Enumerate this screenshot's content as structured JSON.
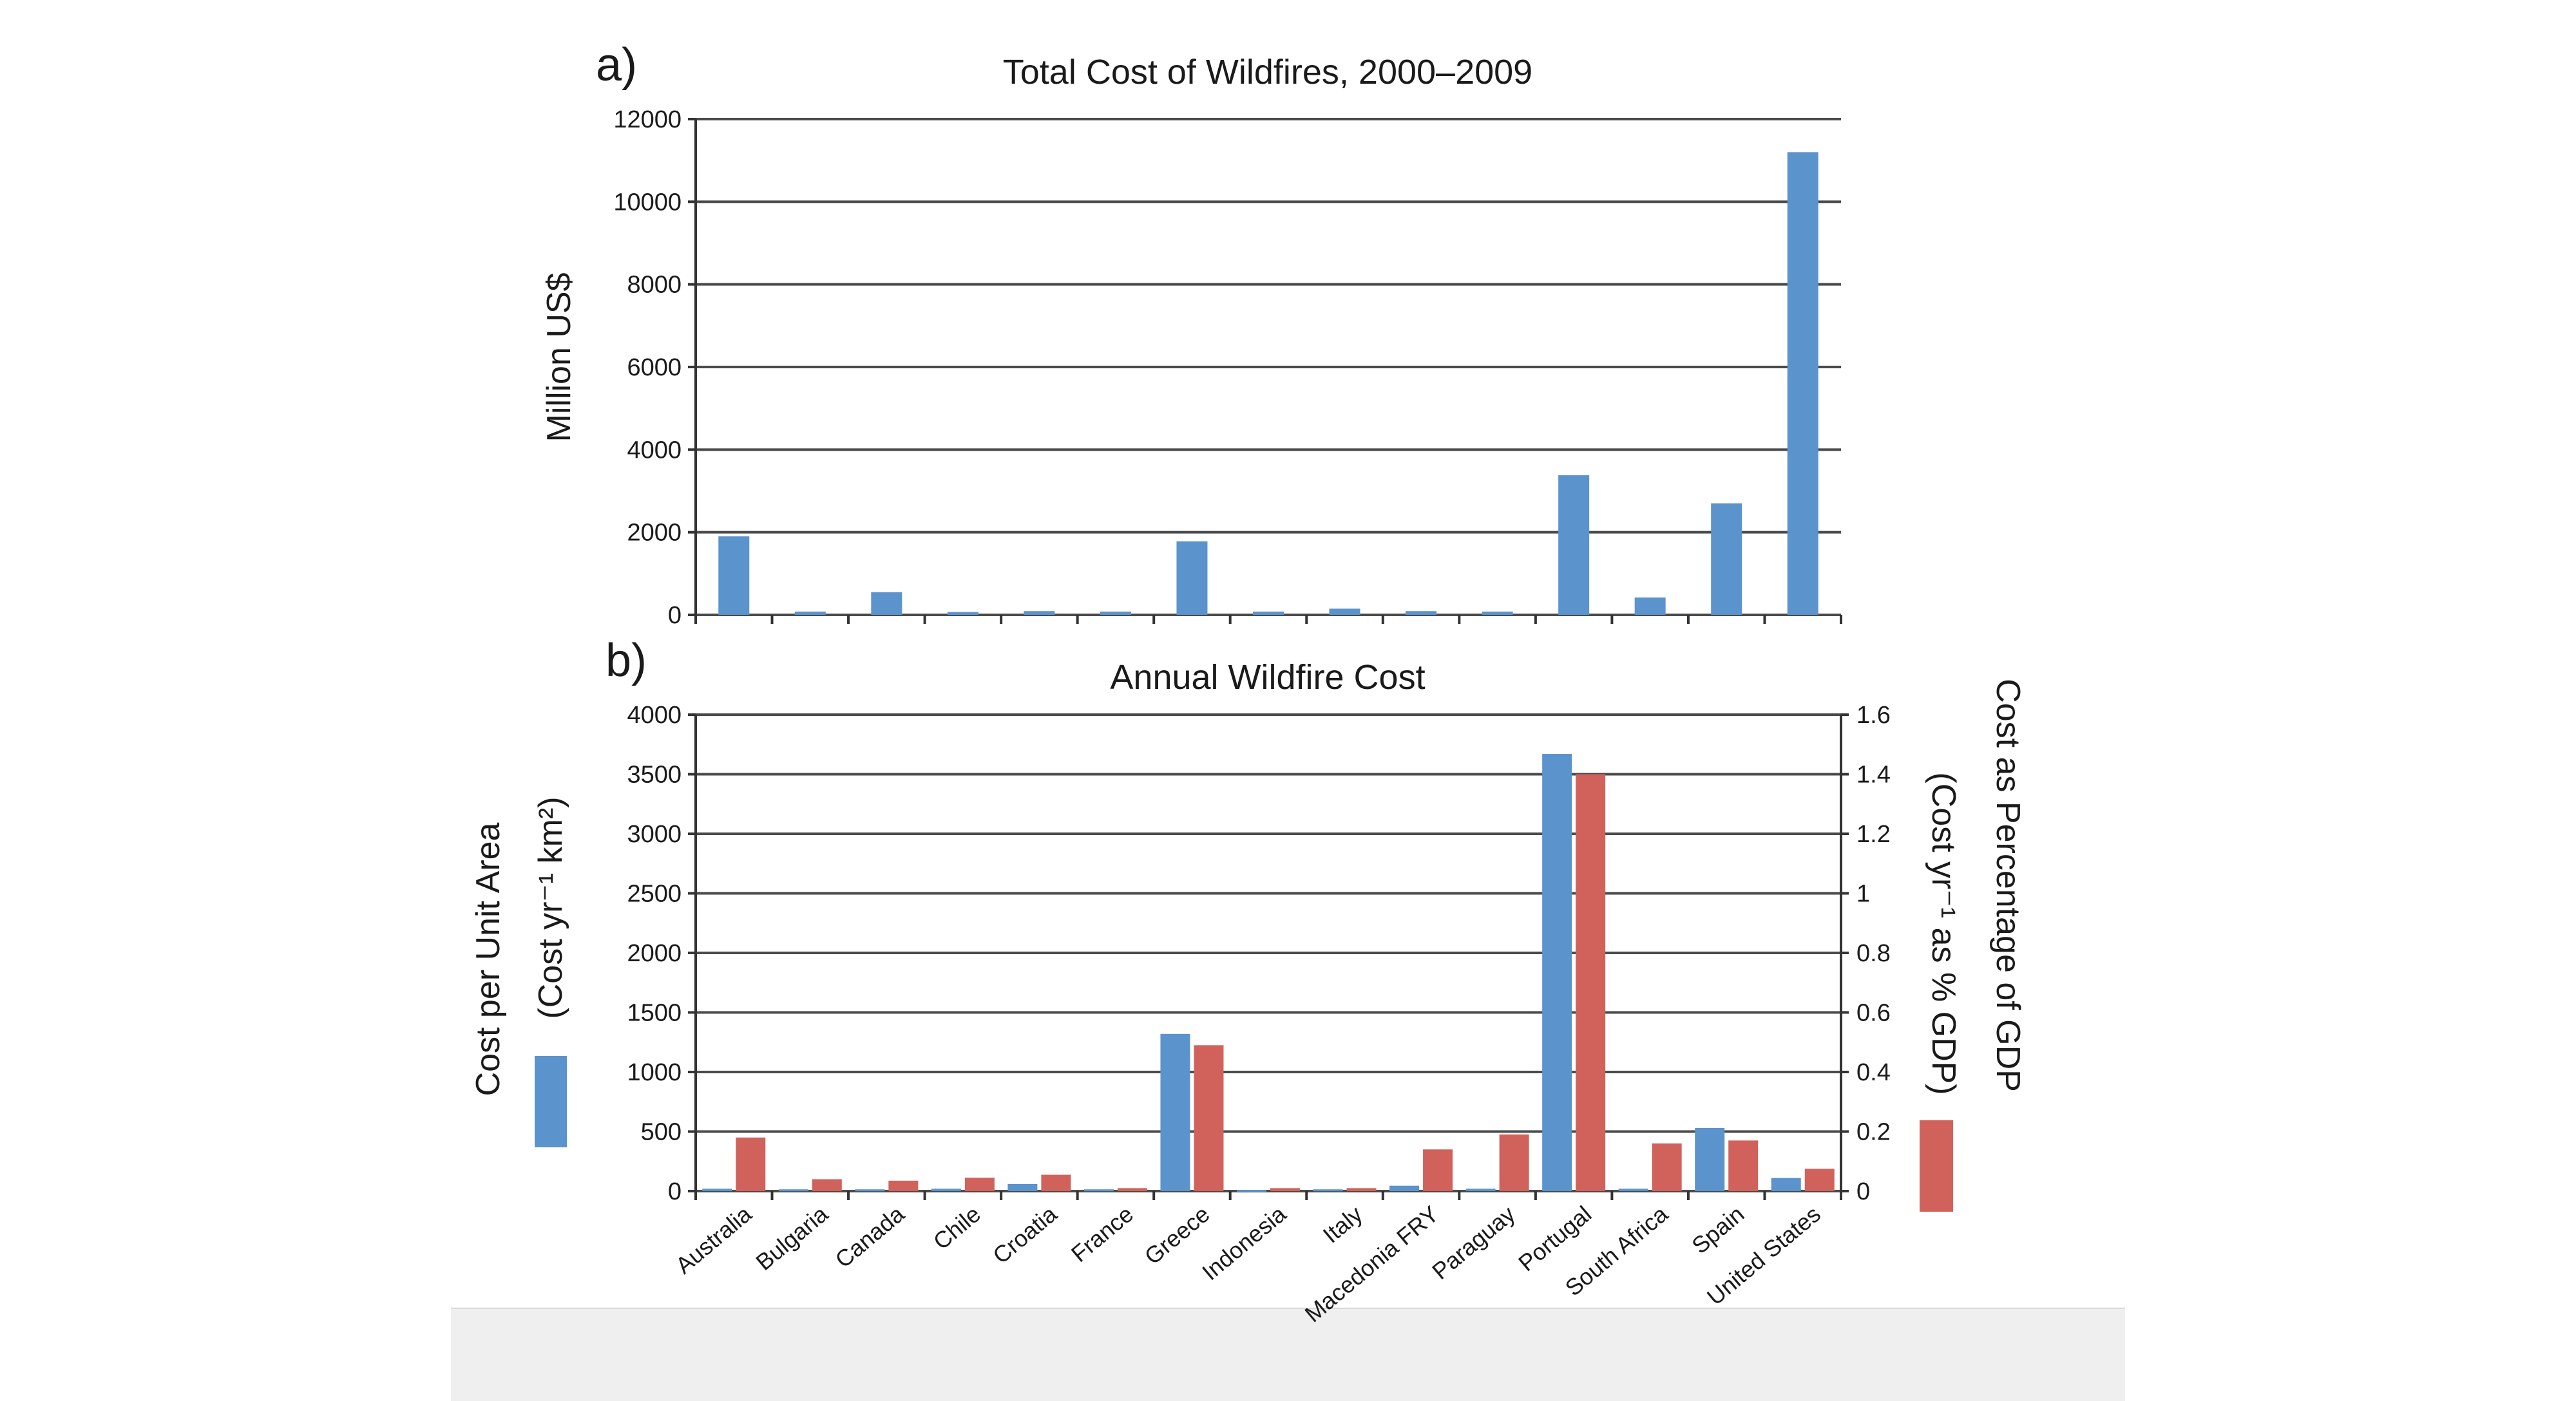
{
  "chart_data": [
    {
      "type": "bar",
      "panel_label": "a)",
      "title": "Total Cost of Wildfires, 2000–2009",
      "ylabel": "Million US$",
      "ylim": [
        0,
        12000
      ],
      "yticks": [
        "0",
        "2000",
        "4000",
        "6000",
        "8000",
        "10000",
        "12000"
      ],
      "categories": [
        "Australia",
        "Bulgaria",
        "Canada",
        "Chile",
        "Croatia",
        "France",
        "Greece",
        "Indonesia",
        "Italy",
        "Macedonia FRY",
        "Paraguay",
        "Portugal",
        "South Africa",
        "Spain",
        "United States"
      ],
      "series": [
        {
          "color": "#5b93cd",
          "values": [
            1900,
            80,
            550,
            70,
            90,
            80,
            1780,
            80,
            150,
            90,
            80,
            3380,
            420,
            2700,
            11200
          ]
        }
      ],
      "grid": true
    },
    {
      "type": "bar",
      "panel_label": "b)",
      "title": "Annual Wildfire Cost",
      "ylabel_left": [
        "Cost per Unit Area",
        "(Cost yr⁻¹ km²)"
      ],
      "ylabel_right": [
        "Cost as Percentage of GDP",
        "(Cost yr⁻¹ as % GDP)"
      ],
      "ylim_left": [
        0,
        4000
      ],
      "ylim_right": [
        0,
        1.6
      ],
      "yticks_left": [
        "0",
        "500",
        "1000",
        "1500",
        "2000",
        "2500",
        "3000",
        "3500",
        "4000"
      ],
      "yticks_right": [
        "0",
        "0.2",
        "0.4",
        "0.6",
        "0.8",
        "1",
        "1.2",
        "1.4",
        "1.6"
      ],
      "categories": [
        "Australia",
        "Bulgaria",
        "Canada",
        "Chile",
        "Croatia",
        "France",
        "Greece",
        "Indonesia",
        "Italy",
        "Macedonia FRY",
        "Paraguay",
        "Portugal",
        "South Africa",
        "Spain",
        "United States"
      ],
      "series": [
        {
          "axis": "left",
          "color": "#5b93cd",
          "values": [
            20,
            15,
            15,
            20,
            60,
            15,
            1320,
            10,
            15,
            45,
            20,
            3670,
            20,
            530,
            110
          ]
        },
        {
          "axis": "right",
          "color": "#d1625b",
          "values": [
            0.18,
            0.04,
            0.035,
            0.045,
            0.055,
            0.01,
            0.49,
            0.01,
            0.01,
            0.14,
            0.19,
            1.4,
            0.16,
            0.17,
            0.075
          ]
        }
      ],
      "legend": "color swatches beside each axis title",
      "grid": true
    }
  ]
}
